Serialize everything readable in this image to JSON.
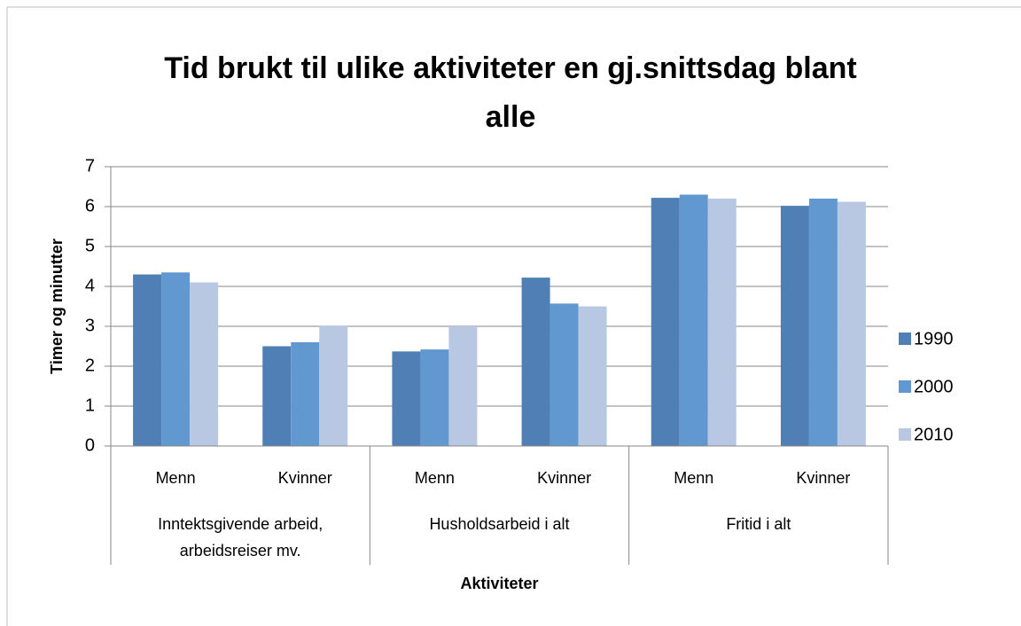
{
  "chart_data": {
    "type": "bar",
    "title": "Tid brukt til ulike aktiviteter en gj.snittsdag blant alle",
    "x_label": "Aktiviteter",
    "y_label": "Timer og minutter",
    "categories": [
      "Menn",
      "Kvinner",
      "Menn",
      "Kvinner",
      "Menn",
      "Kvinner"
    ],
    "groups": [
      "Inntektsgivende arbeid, arbeidsreiser mv.",
      "Husholdsarbeid i alt",
      "Fritid i alt"
    ],
    "series": [
      {
        "name": "1990",
        "color": "#4f7fb5",
        "values": [
          4.3,
          2.5,
          2.37,
          4.22,
          6.22,
          6.02
        ]
      },
      {
        "name": "2000",
        "color": "#6198cf",
        "values": [
          4.35,
          2.6,
          2.42,
          3.57,
          6.3,
          6.2
        ]
      },
      {
        "name": "2010",
        "color": "#b9c8e2",
        "values": [
          4.1,
          3.02,
          3.0,
          3.5,
          6.2,
          6.12
        ]
      }
    ],
    "ylim": [
      0,
      7
    ],
    "yticks": [
      0,
      1,
      2,
      3,
      4,
      5,
      6,
      7
    ],
    "grid": true,
    "legend": "right"
  }
}
